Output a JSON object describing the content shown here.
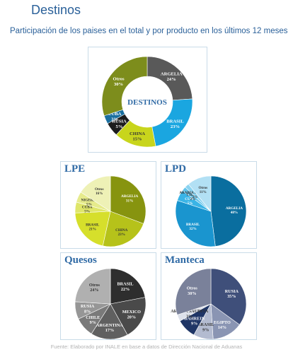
{
  "header": {
    "title": "Destinos",
    "subtitle": "Participación de los paises en el total y por producto en los últimos 12 meses"
  },
  "footer": "Fuente: Elaborado por INALE en base a datos de Dirección Nacional de Aduanas",
  "chart_data": [
    {
      "id": "destinos",
      "type": "pie",
      "variant": "donut",
      "title": "",
      "center_label": "DESTINOS",
      "slices": [
        {
          "label": "ARGELIA",
          "value": 24,
          "value_label": "24%",
          "color": "#595959"
        },
        {
          "label": "BRASIL",
          "value": 23,
          "value_label": "23%",
          "color": "#1aa6e0"
        },
        {
          "label": "CHINA",
          "value": 15,
          "value_label": "15%",
          "color": "#c8d51c"
        },
        {
          "label": "RUSIA",
          "value": 5,
          "value_label": "5%",
          "color": "#1c1c1c"
        },
        {
          "label": "CUBA",
          "value": 3,
          "value_label": "3%",
          "color": "#1a6f9f"
        },
        {
          "label": "Otros",
          "value": 30,
          "value_label": "30%",
          "color": "#7d8d1c"
        }
      ]
    },
    {
      "id": "lpe",
      "type": "pie",
      "title": "LPE",
      "slices": [
        {
          "label": "ARGELIA",
          "value": 31,
          "value_label": "31%",
          "color": "#87940f"
        },
        {
          "label": "CHINA",
          "value": 23,
          "value_label": "23%",
          "color": "#b6c21a"
        },
        {
          "label": "BRASIL",
          "value": 21,
          "value_label": "21%",
          "color": "#d6df2b"
        },
        {
          "label": "CUBA",
          "value": 5,
          "value_label": "5%",
          "color": "#dfe66a"
        },
        {
          "label": "NIGERIA",
          "value": 5,
          "value_label": "5%",
          "color": "#e6eb8c"
        },
        {
          "label": "Otros",
          "value": 16,
          "value_label": "16%",
          "color": "#eef1b6"
        }
      ]
    },
    {
      "id": "lpd",
      "type": "pie",
      "title": "LPD",
      "slices": [
        {
          "label": "ARGELIA",
          "value": 48,
          "value_label": "48%",
          "color": "#0a6e9f"
        },
        {
          "label": "BRASIL",
          "value": 32,
          "value_label": "32%",
          "color": "#1a95cf"
        },
        {
          "label": "CUBA",
          "value": 5,
          "value_label": "5%",
          "color": "#3ab4e6"
        },
        {
          "label": "CHINA",
          "value": 2,
          "value_label": "2%",
          "color": "#62c3ea"
        },
        {
          "label": "ARABIA SAUDITA",
          "value": 2,
          "value_label": "2%",
          "color": "#8ad3f0"
        },
        {
          "label": "Otros",
          "value": 11,
          "value_label": "11%",
          "color": "#b2e0f4"
        }
      ]
    },
    {
      "id": "quesos",
      "type": "pie",
      "title": "Quesos",
      "slices": [
        {
          "label": "BRASIL",
          "value": 22,
          "value_label": "22%",
          "color": "#2e2e2e"
        },
        {
          "label": "MEXICO",
          "value": 20,
          "value_label": "20%",
          "color": "#4a4a4a"
        },
        {
          "label": "ARGENTINA",
          "value": 17,
          "value_label": "17%",
          "color": "#606060"
        },
        {
          "label": "CHILE",
          "value": 9,
          "value_label": "9%",
          "color": "#7a7a7a"
        },
        {
          "label": "RUSIA",
          "value": 8,
          "value_label": "8%",
          "color": "#969696"
        },
        {
          "label": "Otros",
          "value": 24,
          "value_label": "24%",
          "color": "#b0b0b0"
        }
      ]
    },
    {
      "id": "manteca",
      "type": "pie",
      "title": "Manteca",
      "slices": [
        {
          "label": "RUSIA",
          "value": 35,
          "value_label": "35%",
          "color": "#3f4f7a"
        },
        {
          "label": "EGIPTO",
          "value": 14,
          "value_label": "14%",
          "color": "#8a95b3"
        },
        {
          "label": "BRASIL",
          "value": 9,
          "value_label": "9%",
          "color": "#b3bbd0"
        },
        {
          "label": "BAHREIN",
          "value": 9,
          "value_label": "9%",
          "color": "#1f3566"
        },
        {
          "label": "ARABIA SAUDITA",
          "value": 3,
          "value_label": "3%",
          "color": "#dde1ea"
        },
        {
          "label": "Otros",
          "value": 30,
          "value_label": "30%",
          "color": "#7a819a"
        }
      ]
    }
  ]
}
